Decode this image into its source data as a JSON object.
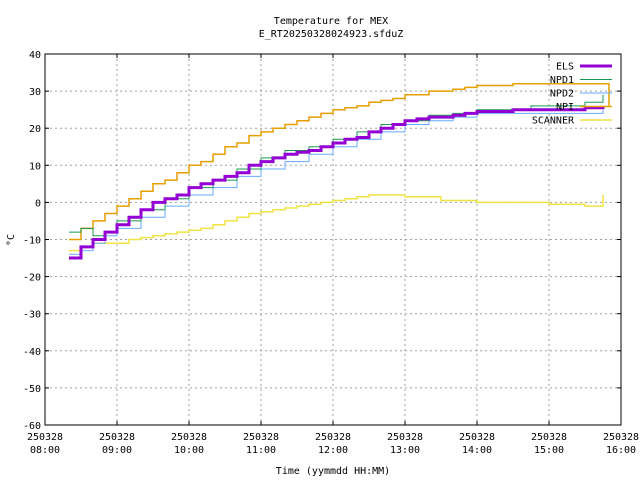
{
  "chart_data": {
    "type": "line",
    "title": "Temperature for MEX",
    "subtitle": "E_RT20250328024923.sfduZ",
    "xlabel": "Time (yymmdd HH:MM)",
    "ylabel": "°C",
    "xlim": [
      "2025-03-28 08:00",
      "2025-03-28 16:00"
    ],
    "ylim": [
      -60,
      40
    ],
    "grid": true,
    "legend_position": "top-right",
    "x_ticks": [
      {
        "date": "250328",
        "time": "08:00"
      },
      {
        "date": "250328",
        "time": "09:00"
      },
      {
        "date": "250328",
        "time": "10:00"
      },
      {
        "date": "250328",
        "time": "11:00"
      },
      {
        "date": "250328",
        "time": "12:00"
      },
      {
        "date": "250328",
        "time": "13:00"
      },
      {
        "date": "250328",
        "time": "14:00"
      },
      {
        "date": "250328",
        "time": "15:00"
      },
      {
        "date": "250328",
        "time": "16:00"
      }
    ],
    "y_ticks": [
      "40",
      "30",
      "20",
      "10",
      "0",
      "-10",
      "-20",
      "-30",
      "-40",
      "-50",
      "-60"
    ],
    "series": [
      {
        "name": "ELS",
        "color": "#9400d3",
        "width": 3,
        "points": [
          [
            "08:20",
            -15
          ],
          [
            "08:30",
            -12
          ],
          [
            "08:40",
            -10
          ],
          [
            "08:50",
            -8
          ],
          [
            "09:00",
            -6
          ],
          [
            "09:10",
            -4
          ],
          [
            "09:20",
            -2
          ],
          [
            "09:30",
            0
          ],
          [
            "09:40",
            1
          ],
          [
            "09:50",
            2
          ],
          [
            "10:00",
            4
          ],
          [
            "10:10",
            5
          ],
          [
            "10:20",
            6
          ],
          [
            "10:30",
            7
          ],
          [
            "10:40",
            8
          ],
          [
            "10:50",
            10
          ],
          [
            "11:00",
            11
          ],
          [
            "11:10",
            12
          ],
          [
            "11:20",
            13
          ],
          [
            "11:30",
            13.5
          ],
          [
            "11:40",
            14
          ],
          [
            "11:50",
            15
          ],
          [
            "12:00",
            16
          ],
          [
            "12:10",
            17
          ],
          [
            "12:20",
            17.5
          ],
          [
            "12:30",
            19
          ],
          [
            "12:40",
            20
          ],
          [
            "12:50",
            21
          ],
          [
            "13:00",
            22
          ],
          [
            "13:10",
            22.5
          ],
          [
            "13:20",
            23
          ],
          [
            "13:30",
            23
          ],
          [
            "13:40",
            23.5
          ],
          [
            "13:50",
            24
          ],
          [
            "14:00",
            24.5
          ],
          [
            "14:30",
            25
          ],
          [
            "15:00",
            25
          ],
          [
            "15:30",
            25.5
          ],
          [
            "15:45",
            26
          ]
        ]
      },
      {
        "name": "NPD1",
        "color": "#1a9850",
        "width": 1,
        "points": [
          [
            "08:20",
            -8
          ],
          [
            "08:30",
            -7
          ],
          [
            "08:40",
            -9
          ],
          [
            "08:50",
            -8
          ],
          [
            "09:00",
            -5
          ],
          [
            "09:20",
            -2
          ],
          [
            "09:40",
            1
          ],
          [
            "10:00",
            4
          ],
          [
            "10:20",
            6
          ],
          [
            "10:40",
            9
          ],
          [
            "11:00",
            12
          ],
          [
            "11:20",
            14
          ],
          [
            "11:40",
            15
          ],
          [
            "12:00",
            17
          ],
          [
            "12:20",
            19
          ],
          [
            "12:40",
            21
          ],
          [
            "13:00",
            22
          ],
          [
            "13:20",
            23.5
          ],
          [
            "13:40",
            24
          ],
          [
            "14:00",
            25
          ],
          [
            "14:30",
            25
          ],
          [
            "14:45",
            26
          ],
          [
            "15:00",
            26
          ],
          [
            "15:30",
            27
          ],
          [
            "15:45",
            29
          ]
        ]
      },
      {
        "name": "NPD2",
        "color": "#66aaff",
        "width": 1,
        "points": [
          [
            "08:20",
            -14
          ],
          [
            "08:30",
            -13
          ],
          [
            "08:40",
            -11
          ],
          [
            "08:50",
            -9
          ],
          [
            "09:00",
            -7
          ],
          [
            "09:20",
            -4
          ],
          [
            "09:40",
            -1
          ],
          [
            "10:00",
            2
          ],
          [
            "10:20",
            4
          ],
          [
            "10:40",
            7
          ],
          [
            "11:00",
            9
          ],
          [
            "11:20",
            11
          ],
          [
            "11:40",
            13
          ],
          [
            "12:00",
            15
          ],
          [
            "12:20",
            17
          ],
          [
            "12:40",
            19
          ],
          [
            "13:00",
            21
          ],
          [
            "13:20",
            22
          ],
          [
            "13:40",
            23
          ],
          [
            "14:00",
            24
          ],
          [
            "14:30",
            24
          ],
          [
            "15:00",
            24
          ],
          [
            "15:30",
            24
          ],
          [
            "15:45",
            25
          ]
        ]
      },
      {
        "name": "NPI",
        "color": "#e69f00",
        "width": 1.5,
        "points": [
          [
            "08:20",
            -10
          ],
          [
            "08:30",
            -7
          ],
          [
            "08:40",
            -5
          ],
          [
            "08:50",
            -3
          ],
          [
            "09:00",
            -1
          ],
          [
            "09:10",
            1
          ],
          [
            "09:20",
            3
          ],
          [
            "09:30",
            5
          ],
          [
            "09:40",
            6
          ],
          [
            "09:50",
            8
          ],
          [
            "10:00",
            10
          ],
          [
            "10:10",
            11
          ],
          [
            "10:20",
            13
          ],
          [
            "10:30",
            15
          ],
          [
            "10:40",
            16
          ],
          [
            "10:50",
            18
          ],
          [
            "11:00",
            19
          ],
          [
            "11:10",
            20
          ],
          [
            "11:20",
            21
          ],
          [
            "11:30",
            22
          ],
          [
            "11:40",
            23
          ],
          [
            "11:50",
            24
          ],
          [
            "12:00",
            25
          ],
          [
            "12:10",
            25.5
          ],
          [
            "12:20",
            26
          ],
          [
            "12:30",
            27
          ],
          [
            "12:40",
            27.5
          ],
          [
            "12:50",
            28
          ],
          [
            "13:00",
            29
          ],
          [
            "13:20",
            30
          ],
          [
            "13:40",
            30.5
          ],
          [
            "13:50",
            31
          ],
          [
            "14:00",
            31.5
          ],
          [
            "14:30",
            32
          ],
          [
            "15:00",
            32
          ],
          [
            "15:30",
            32
          ],
          [
            "15:50",
            26
          ]
        ]
      },
      {
        "name": "SCANNER",
        "color": "#f0e442",
        "width": 1.5,
        "points": [
          [
            "08:20",
            -13
          ],
          [
            "08:30",
            -12
          ],
          [
            "08:40",
            -11
          ],
          [
            "09:00",
            -11
          ],
          [
            "09:10",
            -10
          ],
          [
            "09:20",
            -9.5
          ],
          [
            "09:30",
            -9
          ],
          [
            "09:40",
            -8.5
          ],
          [
            "09:50",
            -8
          ],
          [
            "10:00",
            -7.5
          ],
          [
            "10:10",
            -7
          ],
          [
            "10:20",
            -6
          ],
          [
            "10:30",
            -5
          ],
          [
            "10:40",
            -4
          ],
          [
            "10:50",
            -3
          ],
          [
            "11:00",
            -2.5
          ],
          [
            "11:10",
            -2
          ],
          [
            "11:20",
            -1.5
          ],
          [
            "11:30",
            -1
          ],
          [
            "11:40",
            -0.5
          ],
          [
            "11:50",
            0
          ],
          [
            "12:00",
            0.5
          ],
          [
            "12:10",
            1
          ],
          [
            "12:20",
            1.5
          ],
          [
            "12:30",
            2
          ],
          [
            "13:00",
            1.5
          ],
          [
            "13:30",
            0.5
          ],
          [
            "14:00",
            0
          ],
          [
            "14:30",
            0
          ],
          [
            "15:00",
            -0.5
          ],
          [
            "15:30",
            -1
          ],
          [
            "15:45",
            2
          ]
        ]
      }
    ]
  }
}
